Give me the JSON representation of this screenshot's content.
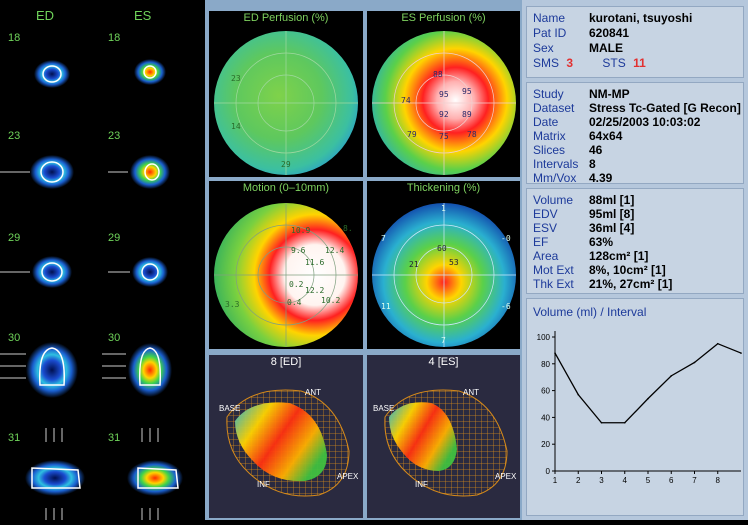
{
  "slices": {
    "col_ed": "ED",
    "col_es": "ES",
    "rows": [
      "18",
      "23",
      "29",
      "30",
      "31"
    ]
  },
  "polar": {
    "ed_perfusion": {
      "title": "ED Perfusion (%)",
      "labels": [
        "23",
        "14",
        "29"
      ]
    },
    "es_perfusion": {
      "title": "ES Perfusion (%)",
      "labels": [
        "88",
        "95",
        "95",
        "92",
        "89",
        "74",
        "79",
        "75",
        "78"
      ]
    },
    "motion": {
      "title": "Motion (0–10mm)",
      "labels": [
        "10.9",
        "9.6",
        "11.6",
        "12.4",
        "8.",
        "0.2",
        "12.2",
        "0.4",
        "10.2",
        "3.3"
      ]
    },
    "thickening": {
      "title": "Thickening (%)",
      "labels": [
        "1",
        "-0",
        "-6",
        "7",
        "7",
        "11",
        "60",
        "53",
        "21"
      ]
    }
  },
  "surfaces": {
    "ed": {
      "title": "8 [ED]",
      "base": "BASE",
      "ant": "ANT",
      "inf": "INF",
      "apex": "APEX"
    },
    "es": {
      "title": "4 [ES]",
      "base": "BASE",
      "ant": "ANT",
      "inf": "INF",
      "apex": "APEX"
    }
  },
  "patient": {
    "name_label": "Name",
    "name": "kurotani, tsuyoshi",
    "id_label": "Pat ID",
    "id": "620841",
    "sex_label": "Sex",
    "sex": "MALE",
    "sms_label": "SMS",
    "sms": "3",
    "sts_label": "STS",
    "sts": "11"
  },
  "study": {
    "study_label": "Study",
    "study": "NM-MP",
    "dataset_label": "Dataset",
    "dataset": "Stress Tc-Gated [G Recon]",
    "date_label": "Date",
    "date": "02/25/2003 10:03:02",
    "matrix_label": "Matrix",
    "matrix": "64x64",
    "slices_label": "Slices",
    "slices": "46",
    "intervals_label": "Intervals",
    "intervals": "8",
    "mmvox_label": "Mm/Vox",
    "mmvox": "4.39"
  },
  "metrics": {
    "volume_label": "Volume",
    "volume": "88ml [1]",
    "edv_label": "EDV",
    "edv": "95ml [8]",
    "esv_label": "ESV",
    "esv": "36ml [4]",
    "ef_label": "EF",
    "ef": "63%",
    "area_label": "Area",
    "area": "128cm² [1]",
    "motext_label": "Mot Ext",
    "motext": "8%, 10cm² [1]",
    "thkext_label": "Thk Ext",
    "thkext": "21%, 27cm² [1]"
  },
  "colors": {
    "label_blue": "#1d3a9a",
    "accent_red": "#e23030",
    "slice_green": "#6fd35a"
  },
  "chart_data": {
    "type": "line",
    "title": "Volume (ml) / Interval",
    "x": [
      1,
      2,
      3,
      4,
      5,
      6,
      7,
      8,
      9
    ],
    "values": [
      88,
      57,
      36,
      36,
      54,
      71,
      81,
      95,
      88
    ],
    "ylim": [
      0,
      100
    ],
    "xlim": [
      1,
      9
    ],
    "yticks": [
      0,
      20,
      40,
      60,
      80,
      100
    ],
    "xticks": [
      1,
      2,
      3,
      4,
      5,
      6,
      7,
      8
    ],
    "grid": false
  }
}
